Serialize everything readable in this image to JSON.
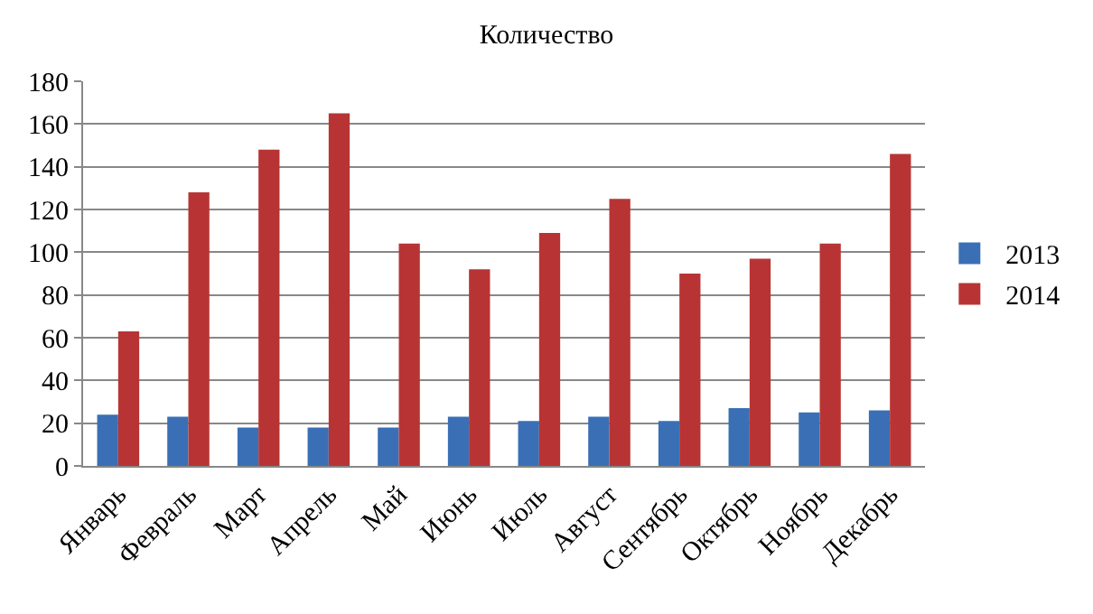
{
  "chart_data": {
    "type": "bar",
    "title": "Количество",
    "categories": [
      "Январь",
      "Февраль",
      "Март",
      "Апрель",
      "Май",
      "Июнь",
      "Июль",
      "Август",
      "Сентябрь",
      "Октябрь",
      "Ноябрь",
      "Декабрь"
    ],
    "series": [
      {
        "name": "2013",
        "color": "#3a6fb5",
        "values": [
          24,
          23,
          18,
          18,
          18,
          23,
          21,
          23,
          21,
          27,
          25,
          26
        ]
      },
      {
        "name": "2014",
        "color": "#b83434",
        "values": [
          63,
          128,
          148,
          165,
          104,
          92,
          109,
          125,
          90,
          97,
          104,
          146
        ]
      }
    ],
    "ylim": [
      0,
      180
    ],
    "yticks": [
      0,
      20,
      40,
      60,
      80,
      100,
      120,
      140,
      160,
      180
    ],
    "grid": "y",
    "legend": "right"
  }
}
